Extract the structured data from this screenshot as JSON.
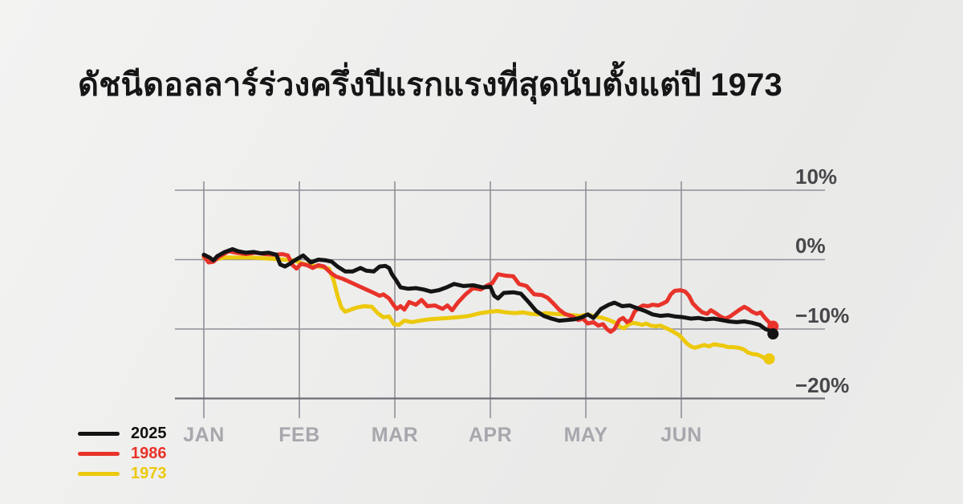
{
  "chart_data": {
    "type": "line",
    "title": "ดัชนีดอลลาร์ร่วงครึ่งปีแรกแรงที่สุดนับตั้งแต่ปี 1973",
    "x_axis": {
      "unit": "month",
      "tick_labels": [
        "JAN",
        "FEB",
        "MAR",
        "APR",
        "MAY",
        "JUN"
      ]
    },
    "y_axis": {
      "tick_labels": [
        "10%",
        "0%",
        "−10%",
        "−20%"
      ],
      "tick_values": [
        10,
        0,
        -10,
        -20
      ],
      "ylim": [
        -22,
        12
      ],
      "unit": "percent change year-to-date"
    },
    "grid": true,
    "legend_position": "bottom-left",
    "colors": {
      "grid": "#8f8f97",
      "axis_strong": "#6f6f77",
      "y_label": "#47474b",
      "x_label": "#a7a7ad",
      "title": "#161616"
    },
    "series": [
      {
        "name": "2025",
        "color": "#141414",
        "end_dot": true,
        "points": [
          [
            0.0,
            0.7
          ],
          [
            0.06,
            0.3
          ],
          [
            0.1,
            -0.1
          ],
          [
            0.14,
            0.5
          ],
          [
            0.22,
            1.1
          ],
          [
            0.3,
            1.5
          ],
          [
            0.36,
            1.2
          ],
          [
            0.44,
            1.0
          ],
          [
            0.52,
            1.1
          ],
          [
            0.6,
            0.9
          ],
          [
            0.68,
            1.0
          ],
          [
            0.76,
            0.7
          ],
          [
            0.8,
            -0.7
          ],
          [
            0.85,
            -1.0
          ],
          [
            0.9,
            -0.6
          ],
          [
            0.94,
            -0.2
          ],
          [
            0.99,
            0.2
          ],
          [
            1.04,
            0.6
          ],
          [
            1.08,
            0.1
          ],
          [
            1.12,
            -0.4
          ],
          [
            1.2,
            0.0
          ],
          [
            1.28,
            -0.1
          ],
          [
            1.34,
            -0.3
          ],
          [
            1.4,
            -1.0
          ],
          [
            1.48,
            -1.7
          ],
          [
            1.56,
            -1.7
          ],
          [
            1.64,
            -1.2
          ],
          [
            1.7,
            -1.6
          ],
          [
            1.78,
            -1.7
          ],
          [
            1.84,
            -1.0
          ],
          [
            1.9,
            -0.9
          ],
          [
            1.94,
            -1.2
          ],
          [
            1.97,
            -2.1
          ],
          [
            2.01,
            -2.9
          ],
          [
            2.06,
            -4.0
          ],
          [
            2.14,
            -4.2
          ],
          [
            2.22,
            -4.1
          ],
          [
            2.3,
            -4.3
          ],
          [
            2.38,
            -4.6
          ],
          [
            2.46,
            -4.4
          ],
          [
            2.54,
            -4.0
          ],
          [
            2.62,
            -3.5
          ],
          [
            2.72,
            -3.8
          ],
          [
            2.82,
            -3.7
          ],
          [
            2.92,
            -4.0
          ],
          [
            3.0,
            -3.9
          ],
          [
            3.04,
            -5.2
          ],
          [
            3.08,
            -5.6
          ],
          [
            3.14,
            -4.8
          ],
          [
            3.24,
            -4.7
          ],
          [
            3.32,
            -4.9
          ],
          [
            3.4,
            -6.1
          ],
          [
            3.48,
            -7.4
          ],
          [
            3.56,
            -8.1
          ],
          [
            3.64,
            -8.5
          ],
          [
            3.72,
            -8.8
          ],
          [
            3.8,
            -8.7
          ],
          [
            3.88,
            -8.6
          ],
          [
            3.96,
            -8.3
          ],
          [
            4.02,
            -7.9
          ],
          [
            4.08,
            -8.4
          ],
          [
            4.16,
            -7.1
          ],
          [
            4.24,
            -6.5
          ],
          [
            4.3,
            -6.2
          ],
          [
            4.38,
            -6.7
          ],
          [
            4.46,
            -6.6
          ],
          [
            4.54,
            -7.0
          ],
          [
            4.62,
            -7.4
          ],
          [
            4.7,
            -7.9
          ],
          [
            4.78,
            -8.1
          ],
          [
            4.86,
            -8.0
          ],
          [
            4.94,
            -8.2
          ],
          [
            5.02,
            -8.3
          ],
          [
            5.1,
            -8.5
          ],
          [
            5.18,
            -8.4
          ],
          [
            5.26,
            -8.6
          ],
          [
            5.34,
            -8.5
          ],
          [
            5.42,
            -8.7
          ],
          [
            5.5,
            -8.9
          ],
          [
            5.58,
            -9.0
          ],
          [
            5.66,
            -8.9
          ],
          [
            5.74,
            -9.1
          ],
          [
            5.82,
            -9.4
          ],
          [
            5.88,
            -10.0
          ],
          [
            5.92,
            -10.2
          ],
          [
            5.96,
            -10.7
          ]
        ]
      },
      {
        "name": "1986",
        "color": "#e8332a",
        "end_dot": true,
        "points": [
          [
            0.0,
            0.5
          ],
          [
            0.05,
            -0.4
          ],
          [
            0.1,
            -0.3
          ],
          [
            0.16,
            0.4
          ],
          [
            0.26,
            1.2
          ],
          [
            0.34,
            1.0
          ],
          [
            0.44,
            0.8
          ],
          [
            0.54,
            1.0
          ],
          [
            0.64,
            0.8
          ],
          [
            0.74,
            0.7
          ],
          [
            0.82,
            0.8
          ],
          [
            0.88,
            0.6
          ],
          [
            0.93,
            -0.8
          ],
          [
            0.97,
            -1.3
          ],
          [
            1.02,
            -0.6
          ],
          [
            1.08,
            -0.8
          ],
          [
            1.14,
            -1.2
          ],
          [
            1.2,
            -0.8
          ],
          [
            1.26,
            -1.0
          ],
          [
            1.32,
            -1.8
          ],
          [
            1.38,
            -2.4
          ],
          [
            1.46,
            -2.8
          ],
          [
            1.54,
            -3.3
          ],
          [
            1.62,
            -3.8
          ],
          [
            1.7,
            -4.3
          ],
          [
            1.78,
            -4.8
          ],
          [
            1.84,
            -5.2
          ],
          [
            1.88,
            -5.0
          ],
          [
            1.94,
            -5.6
          ],
          [
            1.99,
            -6.6
          ],
          [
            2.02,
            -7.1
          ],
          [
            2.06,
            -6.7
          ],
          [
            2.1,
            -7.2
          ],
          [
            2.15,
            -6.1
          ],
          [
            2.22,
            -6.5
          ],
          [
            2.28,
            -5.8
          ],
          [
            2.34,
            -6.7
          ],
          [
            2.42,
            -6.6
          ],
          [
            2.5,
            -7.1
          ],
          [
            2.55,
            -6.6
          ],
          [
            2.6,
            -7.3
          ],
          [
            2.66,
            -6.2
          ],
          [
            2.74,
            -5.0
          ],
          [
            2.82,
            -4.1
          ],
          [
            2.9,
            -4.3
          ],
          [
            2.97,
            -3.7
          ],
          [
            3.02,
            -3.4
          ],
          [
            3.08,
            -2.1
          ],
          [
            3.16,
            -2.3
          ],
          [
            3.24,
            -2.4
          ],
          [
            3.3,
            -3.5
          ],
          [
            3.38,
            -3.8
          ],
          [
            3.46,
            -5.0
          ],
          [
            3.54,
            -5.1
          ],
          [
            3.6,
            -5.5
          ],
          [
            3.66,
            -6.3
          ],
          [
            3.72,
            -7.2
          ],
          [
            3.78,
            -7.8
          ],
          [
            3.86,
            -8.2
          ],
          [
            3.92,
            -8.7
          ],
          [
            3.97,
            -8.5
          ],
          [
            4.02,
            -9.2
          ],
          [
            4.08,
            -9.0
          ],
          [
            4.13,
            -9.5
          ],
          [
            4.18,
            -9.3
          ],
          [
            4.22,
            -10.0
          ],
          [
            4.26,
            -10.4
          ],
          [
            4.3,
            -10.0
          ],
          [
            4.35,
            -8.7
          ],
          [
            4.39,
            -8.4
          ],
          [
            4.43,
            -9.0
          ],
          [
            4.47,
            -8.7
          ],
          [
            4.51,
            -7.5
          ],
          [
            4.56,
            -6.9
          ],
          [
            4.6,
            -6.6
          ],
          [
            4.65,
            -6.7
          ],
          [
            4.7,
            -6.5
          ],
          [
            4.76,
            -6.6
          ],
          [
            4.81,
            -6.3
          ],
          [
            4.85,
            -6.0
          ],
          [
            4.89,
            -5.0
          ],
          [
            4.93,
            -4.5
          ],
          [
            4.99,
            -4.4
          ],
          [
            5.04,
            -4.6
          ],
          [
            5.08,
            -5.2
          ],
          [
            5.12,
            -6.3
          ],
          [
            5.17,
            -7.0
          ],
          [
            5.22,
            -7.6
          ],
          [
            5.27,
            -7.8
          ],
          [
            5.31,
            -7.3
          ],
          [
            5.36,
            -7.7
          ],
          [
            5.41,
            -8.2
          ],
          [
            5.46,
            -8.5
          ],
          [
            5.51,
            -8.2
          ],
          [
            5.56,
            -7.7
          ],
          [
            5.61,
            -7.2
          ],
          [
            5.66,
            -6.8
          ],
          [
            5.7,
            -7.1
          ],
          [
            5.74,
            -7.5
          ],
          [
            5.79,
            -7.8
          ],
          [
            5.83,
            -7.6
          ],
          [
            5.87,
            -8.3
          ],
          [
            5.91,
            -8.9
          ],
          [
            5.96,
            -9.6
          ]
        ]
      },
      {
        "name": "1973",
        "color": "#ecc90c",
        "end_dot": true,
        "points": [
          [
            0.0,
            0.3
          ],
          [
            0.1,
            0.0
          ],
          [
            0.22,
            0.3
          ],
          [
            0.36,
            0.3
          ],
          [
            0.5,
            0.3
          ],
          [
            0.62,
            0.2
          ],
          [
            0.74,
            0.1
          ],
          [
            0.84,
            0.0
          ],
          [
            0.94,
            -0.1
          ],
          [
            1.02,
            -0.5
          ],
          [
            1.1,
            -0.8
          ],
          [
            1.2,
            -1.0
          ],
          [
            1.28,
            -1.2
          ],
          [
            1.31,
            -1.3
          ],
          [
            1.36,
            -3.0
          ],
          [
            1.4,
            -5.2
          ],
          [
            1.44,
            -6.9
          ],
          [
            1.48,
            -7.5
          ],
          [
            1.54,
            -7.2
          ],
          [
            1.6,
            -6.9
          ],
          [
            1.68,
            -6.7
          ],
          [
            1.76,
            -6.8
          ],
          [
            1.82,
            -7.7
          ],
          [
            1.88,
            -8.3
          ],
          [
            1.94,
            -8.2
          ],
          [
            1.99,
            -9.3
          ],
          [
            2.04,
            -9.4
          ],
          [
            2.1,
            -8.8
          ],
          [
            2.18,
            -9.0
          ],
          [
            2.26,
            -8.8
          ],
          [
            2.36,
            -8.6
          ],
          [
            2.46,
            -8.5
          ],
          [
            2.56,
            -8.4
          ],
          [
            2.66,
            -8.3
          ],
          [
            2.78,
            -8.1
          ],
          [
            2.9,
            -7.7
          ],
          [
            3.0,
            -7.5
          ],
          [
            3.08,
            -7.4
          ],
          [
            3.16,
            -7.6
          ],
          [
            3.26,
            -7.7
          ],
          [
            3.34,
            -7.6
          ],
          [
            3.42,
            -7.8
          ],
          [
            3.5,
            -7.9
          ],
          [
            3.58,
            -7.7
          ],
          [
            3.66,
            -7.8
          ],
          [
            3.76,
            -7.9
          ],
          [
            3.86,
            -8.0
          ],
          [
            3.94,
            -8.1
          ],
          [
            4.02,
            -7.9
          ],
          [
            4.1,
            -8.2
          ],
          [
            4.18,
            -8.4
          ],
          [
            4.26,
            -8.8
          ],
          [
            4.31,
            -9.1
          ],
          [
            4.36,
            -9.7
          ],
          [
            4.4,
            -9.9
          ],
          [
            4.44,
            -9.4
          ],
          [
            4.49,
            -9.1
          ],
          [
            4.54,
            -9.2
          ],
          [
            4.59,
            -9.4
          ],
          [
            4.63,
            -9.2
          ],
          [
            4.68,
            -9.5
          ],
          [
            4.73,
            -9.6
          ],
          [
            4.78,
            -9.5
          ],
          [
            4.83,
            -9.8
          ],
          [
            4.88,
            -10.1
          ],
          [
            4.93,
            -10.5
          ],
          [
            4.98,
            -10.9
          ],
          [
            5.02,
            -11.5
          ],
          [
            5.06,
            -12.1
          ],
          [
            5.1,
            -12.5
          ],
          [
            5.14,
            -12.7
          ],
          [
            5.19,
            -12.5
          ],
          [
            5.24,
            -12.3
          ],
          [
            5.29,
            -12.5
          ],
          [
            5.34,
            -12.2
          ],
          [
            5.39,
            -12.3
          ],
          [
            5.44,
            -12.4
          ],
          [
            5.49,
            -12.6
          ],
          [
            5.54,
            -12.6
          ],
          [
            5.6,
            -12.7
          ],
          [
            5.65,
            -12.9
          ],
          [
            5.7,
            -13.4
          ],
          [
            5.75,
            -13.6
          ],
          [
            5.8,
            -13.7
          ],
          [
            5.85,
            -14.0
          ],
          [
            5.89,
            -14.4
          ],
          [
            5.92,
            -14.3
          ]
        ]
      }
    ]
  }
}
